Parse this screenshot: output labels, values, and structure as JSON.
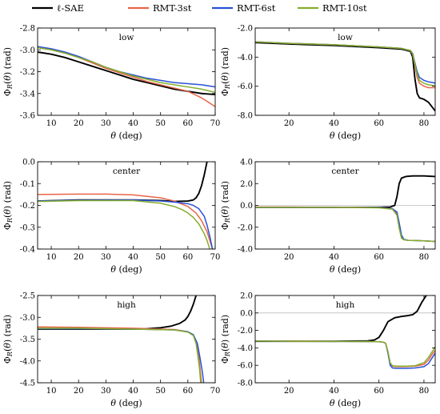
{
  "legend": [
    {
      "name": "ℓ-SAE",
      "color": "#000000"
    },
    {
      "name": "RMT-3st",
      "color": "#e8654a"
    },
    {
      "name": "RMT-6st",
      "color": "#2a52d6"
    },
    {
      "name": "RMT-10st",
      "color": "#86ad2c"
    }
  ],
  "chart_data": [
    {
      "type": "line",
      "title": "low",
      "xlabel": "θ (deg)",
      "ylabel": "Φ_R(θ) (rad)",
      "xlim": [
        5,
        70
      ],
      "ylim": [
        -3.6,
        -2.8
      ],
      "xticks": [
        10,
        20,
        30,
        40,
        50,
        60,
        70
      ],
      "yticks": [
        -3.6,
        -3.4,
        -3.2,
        -3.0,
        -2.8
      ],
      "ytick_labels": [
        "-3.6",
        "-3.4",
        "-3.2",
        "-3.0",
        "-2.8"
      ],
      "zero_line": false,
      "series": [
        {
          "name": "ℓ-SAE",
          "x": [
            5,
            10,
            15,
            20,
            25,
            30,
            35,
            40,
            45,
            50,
            55,
            60,
            65,
            70
          ],
          "y": [
            -3.02,
            -3.04,
            -3.07,
            -3.11,
            -3.15,
            -3.19,
            -3.23,
            -3.27,
            -3.3,
            -3.33,
            -3.36,
            -3.38,
            -3.4,
            -3.41
          ]
        },
        {
          "name": "RMT-3st",
          "x": [
            5,
            10,
            15,
            20,
            25,
            30,
            35,
            40,
            45,
            50,
            55,
            60,
            65,
            70
          ],
          "y": [
            -2.98,
            -3.0,
            -3.03,
            -3.07,
            -3.12,
            -3.17,
            -3.21,
            -3.25,
            -3.29,
            -3.32,
            -3.35,
            -3.38,
            -3.44,
            -3.52
          ]
        },
        {
          "name": "RMT-6st",
          "x": [
            5,
            10,
            15,
            20,
            25,
            30,
            35,
            40,
            45,
            50,
            55,
            60,
            65,
            70
          ],
          "y": [
            -2.97,
            -2.99,
            -3.02,
            -3.06,
            -3.11,
            -3.16,
            -3.2,
            -3.23,
            -3.26,
            -3.28,
            -3.3,
            -3.31,
            -3.32,
            -3.34
          ]
        },
        {
          "name": "RMT-10st",
          "x": [
            5,
            10,
            15,
            20,
            25,
            30,
            35,
            40,
            45,
            50,
            55,
            60,
            65,
            70
          ],
          "y": [
            -2.98,
            -3.0,
            -3.03,
            -3.07,
            -3.11,
            -3.16,
            -3.2,
            -3.24,
            -3.27,
            -3.3,
            -3.32,
            -3.34,
            -3.36,
            -3.39
          ]
        }
      ]
    },
    {
      "type": "line",
      "title": "low",
      "xlabel": "θ (deg)",
      "ylabel": "Φ_R(θ) (rad)",
      "xlim": [
        5,
        85
      ],
      "ylim": [
        -8.0,
        -2.0
      ],
      "xticks": [
        20,
        40,
        60,
        80
      ],
      "yticks": [
        -8.0,
        -6.0,
        -4.0,
        -2.0
      ],
      "ytick_labels": [
        "-8.0",
        "-6.0",
        "-4.0",
        "-2.0"
      ],
      "zero_line": false,
      "series": [
        {
          "name": "ℓ-SAE",
          "x": [
            5,
            20,
            40,
            60,
            70,
            74,
            75,
            76,
            77,
            78,
            80,
            82,
            84,
            85
          ],
          "y": [
            -3.0,
            -3.1,
            -3.2,
            -3.35,
            -3.45,
            -3.6,
            -4.0,
            -5.5,
            -6.5,
            -6.8,
            -6.9,
            -7.1,
            -7.5,
            -7.7
          ]
        },
        {
          "name": "RMT-3st",
          "x": [
            5,
            20,
            40,
            60,
            70,
            74,
            75,
            76,
            77,
            78,
            80,
            82,
            84,
            85
          ],
          "y": [
            -2.95,
            -3.05,
            -3.15,
            -3.3,
            -3.4,
            -3.55,
            -3.8,
            -4.6,
            -5.4,
            -5.8,
            -6.0,
            -6.1,
            -6.1,
            -6.1
          ]
        },
        {
          "name": "RMT-6st",
          "x": [
            5,
            20,
            40,
            60,
            70,
            74,
            75,
            76,
            77,
            78,
            80,
            82,
            84,
            85
          ],
          "y": [
            -2.95,
            -3.05,
            -3.15,
            -3.3,
            -3.4,
            -3.55,
            -3.75,
            -4.4,
            -5.0,
            -5.4,
            -5.6,
            -5.7,
            -5.75,
            -5.8
          ]
        },
        {
          "name": "RMT-10st",
          "x": [
            5,
            20,
            40,
            60,
            70,
            74,
            75,
            76,
            77,
            78,
            80,
            82,
            84,
            85
          ],
          "y": [
            -2.95,
            -3.05,
            -3.15,
            -3.3,
            -3.4,
            -3.55,
            -3.8,
            -4.5,
            -5.2,
            -5.6,
            -5.8,
            -5.9,
            -5.95,
            -6.0
          ]
        }
      ]
    },
    {
      "type": "line",
      "title": "center",
      "xlabel": "θ (deg)",
      "ylabel": "Φ_R(θ) (rad)",
      "xlim": [
        5,
        70
      ],
      "ylim": [
        -0.4,
        0.0
      ],
      "xticks": [
        10,
        20,
        30,
        40,
        50,
        60,
        70
      ],
      "yticks": [
        -0.4,
        -0.3,
        -0.2,
        -0.1,
        0.0
      ],
      "ytick_labels": [
        "-0.4",
        "-0.3",
        "-0.2",
        "-0.1",
        "0.0"
      ],
      "zero_line": false,
      "series": [
        {
          "name": "ℓ-SAE",
          "x": [
            5,
            20,
            40,
            50,
            55,
            60,
            62,
            63,
            64,
            65,
            66,
            67
          ],
          "y": [
            -0.18,
            -0.175,
            -0.175,
            -0.178,
            -0.182,
            -0.18,
            -0.175,
            -0.165,
            -0.145,
            -0.11,
            -0.06,
            0.0
          ]
        },
        {
          "name": "RMT-3st",
          "x": [
            5,
            20,
            30,
            40,
            50,
            55,
            60,
            63,
            65,
            67,
            68,
            69
          ],
          "y": [
            -0.15,
            -0.148,
            -0.148,
            -0.152,
            -0.165,
            -0.18,
            -0.205,
            -0.235,
            -0.27,
            -0.32,
            -0.36,
            -0.4
          ]
        },
        {
          "name": "RMT-6st",
          "x": [
            5,
            20,
            40,
            50,
            55,
            60,
            62,
            64,
            66,
            67,
            68,
            69
          ],
          "y": [
            -0.18,
            -0.176,
            -0.175,
            -0.18,
            -0.185,
            -0.192,
            -0.2,
            -0.215,
            -0.25,
            -0.29,
            -0.34,
            -0.4
          ]
        },
        {
          "name": "RMT-10st",
          "x": [
            5,
            20,
            40,
            50,
            55,
            58,
            60,
            62,
            64,
            66,
            67,
            68
          ],
          "y": [
            -0.182,
            -0.178,
            -0.178,
            -0.19,
            -0.205,
            -0.22,
            -0.235,
            -0.255,
            -0.285,
            -0.33,
            -0.36,
            -0.4
          ]
        }
      ]
    },
    {
      "type": "line",
      "title": "center",
      "xlabel": "θ (deg)",
      "ylabel": "Φ_R(θ) (rad)",
      "xlim": [
        5,
        85
      ],
      "ylim": [
        -4.0,
        4.0
      ],
      "xticks": [
        20,
        40,
        60,
        80
      ],
      "yticks": [
        -4.0,
        -2.0,
        0.0,
        2.0,
        4.0
      ],
      "ytick_labels": [
        "-4.0",
        "-2.0",
        "0.0",
        "2.0",
        "4.0"
      ],
      "zero_line": true,
      "series": [
        {
          "name": "ℓ-SAE",
          "x": [
            5,
            20,
            40,
            60,
            65,
            67,
            68,
            69,
            70,
            72,
            75,
            80,
            85
          ],
          "y": [
            -0.18,
            -0.18,
            -0.18,
            -0.18,
            -0.15,
            0.0,
            0.8,
            2.0,
            2.5,
            2.65,
            2.7,
            2.7,
            2.65
          ]
        },
        {
          "name": "RMT-3st",
          "x": [
            5,
            20,
            40,
            60,
            66,
            68,
            69,
            70,
            71,
            73,
            76,
            80,
            85
          ],
          "y": [
            -0.15,
            -0.15,
            -0.16,
            -0.2,
            -0.3,
            -0.8,
            -2.0,
            -2.9,
            -3.15,
            -3.2,
            -3.22,
            -3.25,
            -3.3
          ]
        },
        {
          "name": "RMT-6st",
          "x": [
            5,
            20,
            40,
            60,
            66,
            68,
            69,
            70,
            71,
            73,
            76,
            80,
            85
          ],
          "y": [
            -0.18,
            -0.18,
            -0.18,
            -0.2,
            -0.3,
            -0.6,
            -1.6,
            -2.7,
            -3.1,
            -3.2,
            -3.22,
            -3.25,
            -3.3
          ]
        },
        {
          "name": "RMT-10st",
          "x": [
            5,
            20,
            40,
            60,
            66,
            68,
            69,
            70,
            71,
            73,
            76,
            80,
            85
          ],
          "y": [
            -0.18,
            -0.18,
            -0.18,
            -0.22,
            -0.35,
            -0.9,
            -2.1,
            -3.0,
            -3.15,
            -3.2,
            -3.22,
            -3.25,
            -3.3
          ]
        }
      ]
    },
    {
      "type": "line",
      "title": "high",
      "xlabel": "θ (deg)",
      "ylabel": "Φ_R(θ) (rad)",
      "xlim": [
        5,
        70
      ],
      "ylim": [
        -4.5,
        -2.5
      ],
      "xticks": [
        10,
        20,
        30,
        40,
        50,
        60,
        70
      ],
      "yticks": [
        -4.5,
        -4.0,
        -3.5,
        -3.0,
        -2.5
      ],
      "ytick_labels": [
        "-4.5",
        "-4.0",
        "-3.5",
        "-3.0",
        "-2.5"
      ],
      "zero_line": false,
      "series": [
        {
          "name": "ℓ-SAE",
          "x": [
            5,
            20,
            40,
            45,
            50,
            54,
            57,
            59,
            60,
            61,
            62,
            63
          ],
          "y": [
            -3.27,
            -3.27,
            -3.27,
            -3.26,
            -3.24,
            -3.2,
            -3.14,
            -3.06,
            -2.98,
            -2.86,
            -2.7,
            -2.5
          ]
        },
        {
          "name": "RMT-3st",
          "x": [
            5,
            20,
            40,
            55,
            60,
            62,
            63,
            64,
            64.5,
            65
          ],
          "y": [
            -3.22,
            -3.23,
            -3.25,
            -3.28,
            -3.33,
            -3.4,
            -3.55,
            -3.9,
            -4.2,
            -4.5
          ]
        },
        {
          "name": "RMT-6st",
          "x": [
            5,
            20,
            40,
            55,
            60,
            62,
            63.5,
            64.5,
            65.3,
            65.8
          ],
          "y": [
            -3.26,
            -3.26,
            -3.27,
            -3.29,
            -3.33,
            -3.4,
            -3.6,
            -3.95,
            -4.25,
            -4.5
          ]
        },
        {
          "name": "RMT-10st",
          "x": [
            5,
            20,
            40,
            55,
            60,
            62,
            63,
            63.8,
            64.3,
            64.7
          ],
          "y": [
            -3.25,
            -3.25,
            -3.27,
            -3.29,
            -3.34,
            -3.42,
            -3.6,
            -3.95,
            -4.2,
            -4.5
          ]
        }
      ]
    },
    {
      "type": "line",
      "title": "high",
      "xlabel": "θ (deg)",
      "ylabel": "Φ_R(θ) (rad)",
      "xlim": [
        5,
        85
      ],
      "ylim": [
        -8.0,
        2.0
      ],
      "xticks": [
        20,
        40,
        60,
        80
      ],
      "yticks": [
        -8.0,
        -6.0,
        -4.0,
        -2.0,
        0.0,
        2.0
      ],
      "ytick_labels": [
        "-8.0",
        "-6.0",
        "-4.0",
        "-2.0",
        "0.0",
        "2.0"
      ],
      "zero_line": true,
      "series": [
        {
          "name": "ℓ-SAE",
          "x": [
            5,
            20,
            40,
            55,
            58,
            60,
            62,
            64,
            67,
            70,
            73,
            75,
            77,
            79,
            81,
            83,
            85
          ],
          "y": [
            -3.25,
            -3.25,
            -3.25,
            -3.2,
            -3.1,
            -2.8,
            -2.0,
            -1.0,
            -0.55,
            -0.4,
            -0.3,
            -0.2,
            0.2,
            1.2,
            2.0,
            2.2,
            2.25
          ]
        },
        {
          "name": "RMT-3st",
          "x": [
            5,
            20,
            40,
            55,
            60,
            62,
            63,
            64,
            65,
            66,
            68,
            72,
            76,
            80,
            82,
            84,
            85
          ],
          "y": [
            -3.2,
            -3.22,
            -3.25,
            -3.28,
            -3.3,
            -3.35,
            -3.5,
            -4.5,
            -5.8,
            -6.1,
            -6.15,
            -6.15,
            -6.1,
            -5.9,
            -5.4,
            -4.6,
            -4.3
          ]
        },
        {
          "name": "RMT-6st",
          "x": [
            5,
            20,
            40,
            55,
            60,
            62,
            63,
            64,
            65,
            66,
            68,
            72,
            76,
            80,
            82,
            84,
            85
          ],
          "y": [
            -3.22,
            -3.24,
            -3.26,
            -3.28,
            -3.3,
            -3.35,
            -3.5,
            -4.6,
            -6.0,
            -6.3,
            -6.35,
            -6.35,
            -6.3,
            -6.15,
            -5.8,
            -5.0,
            -4.6
          ]
        },
        {
          "name": "RMT-10st",
          "x": [
            5,
            20,
            40,
            55,
            60,
            62,
            63,
            64,
            65,
            66,
            68,
            72,
            76,
            80,
            82,
            84,
            85
          ],
          "y": [
            -3.22,
            -3.24,
            -3.26,
            -3.28,
            -3.3,
            -3.35,
            -3.5,
            -4.4,
            -5.7,
            -6.05,
            -6.1,
            -6.1,
            -6.05,
            -5.7,
            -5.1,
            -4.3,
            -3.9
          ]
        }
      ]
    }
  ]
}
